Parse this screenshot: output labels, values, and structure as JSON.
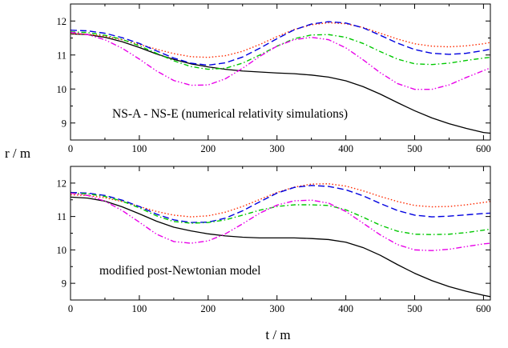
{
  "figure": {
    "ylabel": "r / m",
    "xlabel": "t / m"
  },
  "chart_data": [
    {
      "type": "line",
      "annotation": "NS-A  -  NS-E (numerical relativity simulations)",
      "xlim": [
        0,
        610
      ],
      "ylim": [
        8.5,
        12.5
      ],
      "xticks": [
        0,
        100,
        200,
        300,
        400,
        500,
        600
      ],
      "yticks": [
        9,
        10,
        11,
        12
      ],
      "grid": false,
      "legend": "none",
      "series": [
        {
          "color": "#000000",
          "dash": "solid",
          "x": [
            0,
            25,
            50,
            75,
            100,
            125,
            150,
            175,
            200,
            225,
            250,
            275,
            300,
            325,
            350,
            375,
            400,
            425,
            450,
            475,
            500,
            525,
            550,
            575,
            600,
            610
          ],
          "y": [
            11.62,
            11.6,
            11.52,
            11.39,
            11.22,
            11.03,
            10.87,
            10.74,
            10.65,
            10.58,
            10.53,
            10.5,
            10.47,
            10.45,
            10.41,
            10.35,
            10.24,
            10.07,
            9.85,
            9.6,
            9.36,
            9.15,
            8.98,
            8.84,
            8.72,
            8.7
          ]
        },
        {
          "color": "#ff2a00",
          "dash": "dot",
          "x": [
            0,
            25,
            50,
            75,
            100,
            125,
            150,
            175,
            200,
            225,
            250,
            275,
            300,
            325,
            350,
            375,
            400,
            425,
            450,
            475,
            500,
            525,
            550,
            575,
            600,
            610
          ],
          "y": [
            11.63,
            11.61,
            11.55,
            11.45,
            11.31,
            11.17,
            11.04,
            10.95,
            10.93,
            10.98,
            11.11,
            11.31,
            11.54,
            11.75,
            11.89,
            11.95,
            11.92,
            11.81,
            11.64,
            11.47,
            11.33,
            11.26,
            11.24,
            11.27,
            11.33,
            11.37
          ]
        },
        {
          "color": "#0000e0",
          "dash": "dash",
          "x": [
            0,
            25,
            50,
            75,
            100,
            125,
            150,
            175,
            200,
            225,
            250,
            275,
            300,
            325,
            350,
            375,
            400,
            425,
            450,
            475,
            500,
            525,
            550,
            575,
            600,
            610
          ],
          "y": [
            11.73,
            11.71,
            11.64,
            11.51,
            11.34,
            11.12,
            10.91,
            10.76,
            10.7,
            10.77,
            10.94,
            11.2,
            11.48,
            11.74,
            11.91,
            11.98,
            11.94,
            11.8,
            11.58,
            11.35,
            11.16,
            11.05,
            11.02,
            11.05,
            11.13,
            11.17
          ]
        },
        {
          "color": "#00c800",
          "dash": "dashdot",
          "x": [
            0,
            25,
            50,
            75,
            100,
            125,
            150,
            175,
            200,
            225,
            250,
            275,
            300,
            325,
            350,
            375,
            400,
            425,
            450,
            475,
            500,
            525,
            550,
            575,
            600,
            610
          ],
          "y": [
            11.68,
            11.66,
            11.58,
            11.46,
            11.27,
            11.05,
            10.83,
            10.66,
            10.58,
            10.61,
            10.76,
            11.0,
            11.26,
            11.48,
            11.59,
            11.6,
            11.52,
            11.34,
            11.1,
            10.88,
            10.74,
            10.72,
            10.76,
            10.84,
            10.91,
            10.93
          ]
        },
        {
          "color": "#e800e8",
          "dash": "dashdotdot",
          "x": [
            0,
            25,
            50,
            75,
            100,
            125,
            150,
            175,
            200,
            225,
            250,
            275,
            300,
            325,
            350,
            375,
            400,
            425,
            450,
            475,
            500,
            525,
            550,
            575,
            600,
            610
          ],
          "y": [
            11.67,
            11.6,
            11.45,
            11.2,
            10.88,
            10.53,
            10.25,
            10.11,
            10.12,
            10.3,
            10.61,
            10.96,
            11.26,
            11.45,
            11.52,
            11.45,
            11.21,
            10.86,
            10.48,
            10.16,
            9.99,
            9.99,
            10.12,
            10.34,
            10.54,
            10.62
          ]
        }
      ]
    },
    {
      "type": "line",
      "annotation": "modified post-Newtonian model",
      "xlim": [
        0,
        610
      ],
      "ylim": [
        8.5,
        12.5
      ],
      "xticks": [
        0,
        100,
        200,
        300,
        400,
        500,
        600
      ],
      "yticks": [
        9,
        10,
        11,
        12
      ],
      "grid": false,
      "legend": "none",
      "series": [
        {
          "color": "#000000",
          "dash": "solid",
          "x": [
            0,
            25,
            50,
            75,
            100,
            125,
            150,
            175,
            200,
            225,
            250,
            275,
            300,
            325,
            350,
            375,
            400,
            425,
            450,
            475,
            500,
            525,
            550,
            575,
            600,
            610
          ],
          "y": [
            11.58,
            11.55,
            11.46,
            11.29,
            11.08,
            10.86,
            10.68,
            10.57,
            10.48,
            10.42,
            10.38,
            10.36,
            10.36,
            10.36,
            10.34,
            10.31,
            10.23,
            10.07,
            9.84,
            9.56,
            9.3,
            9.08,
            8.9,
            8.76,
            8.64,
            8.6
          ]
        },
        {
          "color": "#ff2a00",
          "dash": "dot",
          "x": [
            0,
            25,
            50,
            75,
            100,
            125,
            150,
            175,
            200,
            225,
            250,
            275,
            300,
            325,
            350,
            375,
            400,
            425,
            450,
            475,
            500,
            525,
            550,
            575,
            600,
            610
          ],
          "y": [
            11.65,
            11.63,
            11.56,
            11.45,
            11.3,
            11.15,
            11.04,
            10.99,
            11.02,
            11.13,
            11.3,
            11.51,
            11.72,
            11.88,
            11.97,
            11.98,
            11.91,
            11.77,
            11.6,
            11.45,
            11.33,
            11.29,
            11.3,
            11.35,
            11.42,
            11.45
          ]
        },
        {
          "color": "#0000e0",
          "dash": "dash",
          "x": [
            0,
            25,
            50,
            75,
            100,
            125,
            150,
            175,
            200,
            225,
            250,
            275,
            300,
            325,
            350,
            375,
            400,
            425,
            450,
            475,
            500,
            525,
            550,
            575,
            600,
            610
          ],
          "y": [
            11.72,
            11.7,
            11.63,
            11.49,
            11.3,
            11.07,
            10.9,
            10.82,
            10.83,
            10.95,
            11.17,
            11.44,
            11.7,
            11.87,
            11.93,
            11.9,
            11.8,
            11.62,
            11.39,
            11.18,
            11.04,
            10.99,
            11.01,
            11.05,
            11.09,
            11.1
          ]
        },
        {
          "color": "#00c800",
          "dash": "dashdot",
          "x": [
            0,
            25,
            50,
            75,
            100,
            125,
            150,
            175,
            200,
            225,
            250,
            275,
            300,
            325,
            350,
            375,
            400,
            425,
            450,
            475,
            500,
            525,
            550,
            575,
            600,
            610
          ],
          "y": [
            11.7,
            11.68,
            11.6,
            11.46,
            11.26,
            11.02,
            10.85,
            10.8,
            10.82,
            10.9,
            11.04,
            11.19,
            11.3,
            11.35,
            11.35,
            11.33,
            11.2,
            10.98,
            10.74,
            10.56,
            10.47,
            10.46,
            10.47,
            10.52,
            10.59,
            10.62
          ]
        },
        {
          "color": "#e800e8",
          "dash": "dashdotdot",
          "x": [
            0,
            25,
            50,
            75,
            100,
            125,
            150,
            175,
            200,
            225,
            250,
            275,
            300,
            325,
            350,
            375,
            400,
            425,
            450,
            475,
            500,
            525,
            550,
            575,
            600,
            610
          ],
          "y": [
            11.7,
            11.63,
            11.46,
            11.18,
            10.83,
            10.47,
            10.25,
            10.2,
            10.27,
            10.48,
            10.78,
            11.1,
            11.34,
            11.47,
            11.49,
            11.4,
            11.15,
            10.8,
            10.45,
            10.16,
            10.0,
            9.98,
            10.02,
            10.1,
            10.18,
            10.2
          ]
        }
      ]
    }
  ]
}
